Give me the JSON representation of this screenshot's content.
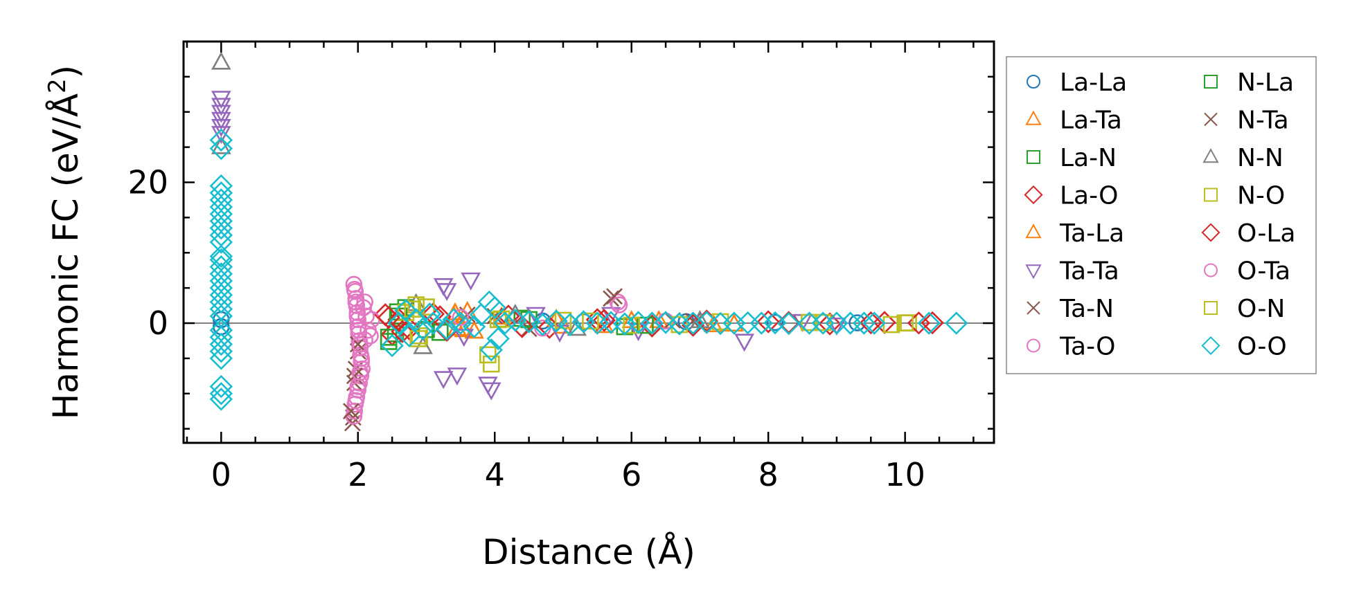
{
  "chart_data": {
    "type": "scatter",
    "title": "",
    "xlabel": "Distance (Å)",
    "ylabel_main": "Harmonic FC (eV/Å",
    "ylabel_sup": "2",
    "ylabel_end": ")",
    "xlim": [
      -0.55,
      11.3
    ],
    "ylim": [
      -17,
      40
    ],
    "xticks": [
      0,
      2,
      4,
      6,
      8,
      10
    ],
    "xtick_labels": [
      "0",
      "2",
      "4",
      "6",
      "8",
      "10"
    ],
    "yticks": [
      0,
      20
    ],
    "ytick_labels": [
      "0",
      "20"
    ],
    "x_minor_step": 0.5,
    "y_minor_step": 5,
    "zero_line": true,
    "grid": false,
    "legend_position": "outside-right",
    "series": [
      {
        "name": "La-La",
        "marker": "circle",
        "color": "#1f77b4",
        "points": [
          [
            0,
            0.5
          ],
          [
            0,
            -0.5
          ],
          [
            4.7,
            0.3
          ],
          [
            5.3,
            0.2
          ],
          [
            6.8,
            0.2
          ],
          [
            8.1,
            0.1
          ],
          [
            9.3,
            0.05
          ]
        ]
      },
      {
        "name": "La-Ta",
        "marker": "triangle-up",
        "color": "#ff7f0e",
        "points": [
          [
            3.4,
            1.0
          ],
          [
            3.45,
            -0.8
          ],
          [
            3.6,
            1.6
          ],
          [
            3.7,
            -1.2
          ],
          [
            4.9,
            0.5
          ],
          [
            5.6,
            -0.4
          ],
          [
            6.4,
            0.3
          ],
          [
            7.2,
            -0.3
          ]
        ]
      },
      {
        "name": "La-N",
        "marker": "square",
        "color": "#2ca02c",
        "points": [
          [
            2.45,
            -2.6
          ],
          [
            2.55,
            -1.5
          ],
          [
            2.6,
            1.0
          ],
          [
            2.7,
            2.2
          ],
          [
            3.2,
            -1.3
          ],
          [
            4.4,
            0.7
          ],
          [
            5.9,
            -0.5
          ]
        ]
      },
      {
        "name": "La-O",
        "marker": "diamond",
        "color": "#d62728",
        "points": [
          [
            2.4,
            1.2
          ],
          [
            2.5,
            -1.6
          ],
          [
            2.6,
            0.5
          ],
          [
            2.75,
            -0.8
          ],
          [
            3.1,
            1.3
          ],
          [
            3.3,
            -1.0
          ],
          [
            4.2,
            1.0
          ],
          [
            4.8,
            -0.6
          ],
          [
            5.5,
            0.5
          ],
          [
            6.3,
            -0.4
          ],
          [
            7.1,
            0.3
          ],
          [
            8.0,
            0.2
          ],
          [
            8.9,
            -0.1
          ],
          [
            9.7,
            0.1
          ],
          [
            10.4,
            0.05
          ]
        ]
      },
      {
        "name": "Ta-La",
        "marker": "triangle-up",
        "color": "#ff7f0e",
        "points": [
          [
            3.42,
            1.4
          ],
          [
            3.55,
            -1.0
          ],
          [
            4.1,
            0.8
          ],
          [
            5.0,
            -0.5
          ],
          [
            6.0,
            0.3
          ],
          [
            7.5,
            -0.2
          ]
        ]
      },
      {
        "name": "Ta-Ta",
        "marker": "triangle-down",
        "color": "#9467bd",
        "points": [
          [
            0,
            32
          ],
          [
            0,
            31
          ],
          [
            0,
            30
          ],
          [
            0,
            29
          ],
          [
            0,
            28
          ],
          [
            0,
            27
          ],
          [
            3.25,
            5.4
          ],
          [
            3.3,
            4.7
          ],
          [
            3.65,
            6.2
          ],
          [
            3.25,
            -7.8
          ],
          [
            3.45,
            -7.3
          ],
          [
            3.9,
            -8.6
          ],
          [
            3.95,
            -9.4
          ],
          [
            3.55,
            -1.8
          ],
          [
            4.6,
            1.3
          ],
          [
            4.95,
            -1.2
          ],
          [
            5.7,
            1.3
          ],
          [
            6.1,
            -1.0
          ],
          [
            7.65,
            -2.5
          ],
          [
            8.5,
            0.3
          ],
          [
            9.0,
            -0.2
          ]
        ]
      },
      {
        "name": "Ta-N",
        "marker": "x",
        "color": "#8c564b",
        "points": [
          [
            1.92,
            -14.2
          ],
          [
            1.93,
            -13.4
          ],
          [
            1.95,
            -8.5
          ],
          [
            1.97,
            -6.5
          ],
          [
            2.0,
            -4.0
          ],
          [
            3.6,
            1.2
          ],
          [
            5.7,
            3.5
          ],
          [
            4.5,
            -0.8
          ],
          [
            6.6,
            0.4
          ]
        ]
      },
      {
        "name": "Ta-O",
        "marker": "circle",
        "color": "#e377c2",
        "points": [
          [
            1.94,
            5.5
          ],
          [
            1.96,
            4.5
          ],
          [
            1.97,
            3.5
          ],
          [
            1.98,
            2.5
          ],
          [
            1.99,
            1.5
          ],
          [
            2.0,
            0.5
          ],
          [
            2.0,
            -0.5
          ],
          [
            2.01,
            -1.5
          ],
          [
            2.02,
            -2.5
          ],
          [
            2.03,
            -3.5
          ],
          [
            2.04,
            -4.5
          ],
          [
            2.05,
            -5.5
          ],
          [
            2.06,
            -6.5
          ],
          [
            2.04,
            -7.5
          ],
          [
            2.02,
            -8.5
          ],
          [
            2.0,
            -9.5
          ],
          [
            1.98,
            -10.5
          ],
          [
            1.96,
            -11.5
          ],
          [
            1.95,
            -12.5
          ],
          [
            1.94,
            -13.2
          ],
          [
            2.08,
            2.2
          ],
          [
            2.1,
            -2.4
          ],
          [
            2.12,
            1.0
          ],
          [
            2.15,
            -1.0
          ],
          [
            2.2,
            0.5
          ],
          [
            5.8,
            3.0
          ],
          [
            3.5,
            0.8
          ],
          [
            4.7,
            -0.7
          ],
          [
            6.5,
            0.3
          ]
        ]
      },
      {
        "name": "N-La",
        "marker": "square",
        "color": "#2ca02c",
        "points": [
          [
            2.45,
            -2.0
          ],
          [
            2.58,
            1.6
          ],
          [
            3.0,
            -0.9
          ],
          [
            4.5,
            0.5
          ],
          [
            6.2,
            -0.3
          ]
        ]
      },
      {
        "name": "N-Ta",
        "marker": "x",
        "color": "#8c564b",
        "points": [
          [
            1.9,
            -12.5
          ],
          [
            1.95,
            -7.5
          ],
          [
            2.0,
            -3.0
          ],
          [
            4.0,
            1.0
          ],
          [
            5.75,
            3.8
          ],
          [
            6.9,
            0.3
          ]
        ]
      },
      {
        "name": "N-N",
        "marker": "triangle-up",
        "color": "#7f7f7f",
        "points": [
          [
            0,
            37
          ],
          [
            0,
            25
          ],
          [
            2.95,
            -3.4
          ],
          [
            2.85,
            2.7
          ],
          [
            4.3,
            1.2
          ],
          [
            5.2,
            -0.8
          ],
          [
            7.0,
            0.3
          ]
        ]
      },
      {
        "name": "N-O",
        "marker": "square",
        "color": "#bcbd22",
        "points": [
          [
            2.7,
            1.5
          ],
          [
            2.85,
            2.6
          ],
          [
            2.9,
            -1.8
          ],
          [
            3.0,
            2.3
          ],
          [
            3.95,
            -5.8
          ],
          [
            4.05,
            0.5
          ],
          [
            5.0,
            0.4
          ],
          [
            6.0,
            -0.3
          ],
          [
            7.3,
            0.2
          ],
          [
            8.6,
            0.1
          ],
          [
            9.8,
            -0.2
          ],
          [
            10.05,
            0.05
          ]
        ]
      },
      {
        "name": "O-La",
        "marker": "diamond",
        "color": "#d62728",
        "points": [
          [
            2.45,
            0.8
          ],
          [
            2.65,
            -1.2
          ],
          [
            3.2,
            0.9
          ],
          [
            4.4,
            -0.5
          ],
          [
            5.6,
            0.4
          ],
          [
            6.9,
            -0.3
          ],
          [
            8.3,
            0.1
          ],
          [
            9.5,
            0.05
          ],
          [
            10.2,
            0.02
          ]
        ]
      },
      {
        "name": "O-Ta",
        "marker": "circle",
        "color": "#e377c2",
        "points": [
          [
            1.95,
            4.8
          ],
          [
            1.97,
            3.0
          ],
          [
            1.99,
            1.0
          ],
          [
            2.01,
            -1.0
          ],
          [
            2.03,
            -3.0
          ],
          [
            2.05,
            -5.0
          ],
          [
            2.03,
            -7.0
          ],
          [
            2.0,
            -9.0
          ],
          [
            1.97,
            -11.0
          ],
          [
            2.1,
            3.0
          ],
          [
            2.18,
            -1.8
          ],
          [
            5.82,
            2.6
          ]
        ]
      },
      {
        "name": "O-N",
        "marker": "square",
        "color": "#bcbd22",
        "points": [
          [
            2.8,
            2.0
          ],
          [
            2.88,
            -2.2
          ],
          [
            3.9,
            -4.5
          ],
          [
            4.1,
            0.6
          ],
          [
            5.4,
            0.3
          ],
          [
            6.7,
            -0.2
          ],
          [
            8.8,
            0.1
          ],
          [
            10.0,
            0.02
          ]
        ]
      },
      {
        "name": "O-O",
        "marker": "diamond",
        "color": "#17becf",
        "points": [
          [
            0,
            26
          ],
          [
            0,
            24.8
          ],
          [
            0,
            19.5
          ],
          [
            0,
            18.5
          ],
          [
            0,
            17.5
          ],
          [
            0,
            16.5
          ],
          [
            0,
            15.5
          ],
          [
            0,
            14.5
          ],
          [
            0,
            13.5
          ],
          [
            0,
            12.5
          ],
          [
            0,
            11.5
          ],
          [
            0,
            9.5
          ],
          [
            0,
            9
          ],
          [
            0,
            8
          ],
          [
            0,
            7
          ],
          [
            0,
            6
          ],
          [
            0,
            5
          ],
          [
            0,
            4
          ],
          [
            0,
            3
          ],
          [
            0,
            2
          ],
          [
            0,
            1
          ],
          [
            0,
            -1
          ],
          [
            0,
            -2
          ],
          [
            0,
            -3
          ],
          [
            0,
            -4
          ],
          [
            0,
            -5
          ],
          [
            0,
            -9
          ],
          [
            0,
            -10
          ],
          [
            0,
            -10.8
          ],
          [
            2.5,
            -3.2
          ],
          [
            2.6,
            0.0
          ],
          [
            2.7,
            1.8
          ],
          [
            2.75,
            -1.8
          ],
          [
            2.85,
            0.5
          ],
          [
            2.95,
            -0.8
          ],
          [
            3.05,
            1.3
          ],
          [
            3.1,
            0.0
          ],
          [
            3.3,
            -0.8
          ],
          [
            3.4,
            0.5
          ],
          [
            3.5,
            0.0
          ],
          [
            3.7,
            -0.5
          ],
          [
            3.8,
            1.2
          ],
          [
            3.92,
            3.0
          ],
          [
            3.95,
            -3.8
          ],
          [
            4.0,
            2.2
          ],
          [
            4.05,
            -2.2
          ],
          [
            4.15,
            0.0
          ],
          [
            4.3,
            0.4
          ],
          [
            4.5,
            0.2
          ],
          [
            4.7,
            -0.2
          ],
          [
            4.9,
            0.3
          ],
          [
            5.1,
            -0.2
          ],
          [
            5.3,
            0.2
          ],
          [
            5.5,
            0.0
          ],
          [
            5.7,
            0.1
          ],
          [
            5.9,
            -0.1
          ],
          [
            6.1,
            0.1
          ],
          [
            6.3,
            0.0
          ],
          [
            6.5,
            0.1
          ],
          [
            6.7,
            -0.1
          ],
          [
            6.9,
            0.0
          ],
          [
            7.1,
            0.1
          ],
          [
            7.3,
            -0.05
          ],
          [
            7.5,
            0.0
          ],
          [
            7.7,
            0.05
          ],
          [
            7.9,
            0.0
          ],
          [
            8.1,
            0.05
          ],
          [
            8.3,
            -0.05
          ],
          [
            8.6,
            0.0
          ],
          [
            8.8,
            0.0
          ],
          [
            9.0,
            0.0
          ],
          [
            9.2,
            0.0
          ],
          [
            9.4,
            0.0
          ],
          [
            9.55,
            0.0
          ],
          [
            10.35,
            0.0
          ],
          [
            10.75,
            0.0
          ]
        ]
      }
    ]
  }
}
